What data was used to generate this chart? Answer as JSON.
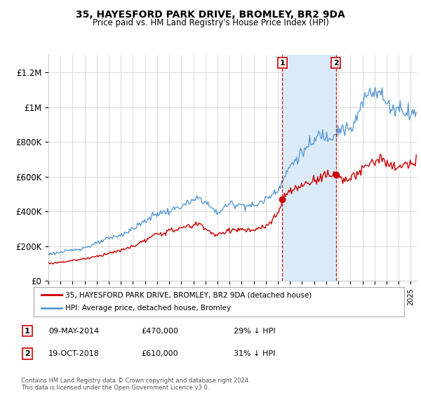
{
  "title": "35, HAYESFORD PARK DRIVE, BROMLEY, BR2 9DA",
  "subtitle": "Price paid vs. HM Land Registry's House Price Index (HPI)",
  "legend_line1": "35, HAYESFORD PARK DRIVE, BROMLEY, BR2 9DA (detached house)",
  "legend_line2": "HPI: Average price, detached house, Bromley",
  "footer": "Contains HM Land Registry data © Crown copyright and database right 2024.\nThis data is licensed under the Open Government Licence v3.0.",
  "transaction1_label": "1",
  "transaction1_date": "09-MAY-2014",
  "transaction1_price": "£470,000",
  "transaction1_hpi": "29% ↓ HPI",
  "transaction1_year": 2014.37,
  "transaction1_value": 470000,
  "transaction2_label": "2",
  "transaction2_date": "19-OCT-2018",
  "transaction2_price": "£610,000",
  "transaction2_hpi": "31% ↓ HPI",
  "transaction2_year": 2018.79,
  "transaction2_value": 610000,
  "hpi_color": "#5b9bd5",
  "hpi_fill_color": "#daeaf7",
  "price_color": "#cc0000",
  "marker_color": "#cc0000",
  "background_color": "#ffffff",
  "grid_color": "#cccccc",
  "ylim": [
    0,
    1300000
  ],
  "xlim_start": 1995.0,
  "xlim_end": 2025.5,
  "yticks": [
    0,
    200000,
    400000,
    600000,
    800000,
    1000000,
    1200000
  ],
  "ytick_labels": [
    "£0",
    "£200K",
    "£400K",
    "£600K",
    "£800K",
    "£1M",
    "£1.2M"
  ]
}
